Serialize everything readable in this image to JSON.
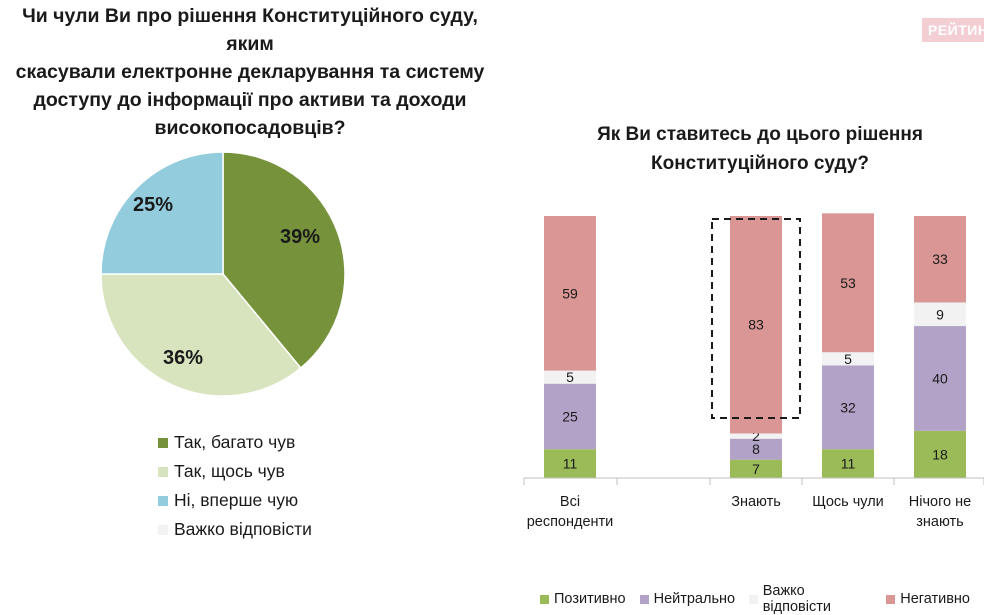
{
  "brand": "РЕЙТИН",
  "chart_data": [
    {
      "type": "pie",
      "title": "Чи чули Ви про рішення Конституційного суду, яким\nскасували електронне декларування та систему\nдоступу до інформації про активи та доходи\nвисокопосадовців?",
      "slices": [
        {
          "label": "Так, багато чув",
          "value": 39,
          "display": "39%",
          "color": "#76933c"
        },
        {
          "label": "Так, щось чув",
          "value": 36,
          "display": "36%",
          "color": "#d7e4bd"
        },
        {
          "label": "Ні, вперше чую",
          "value": 25,
          "display": "25%",
          "color": "#93cddd"
        },
        {
          "label": "Важко відповісти",
          "value": 0,
          "display": "",
          "color": "#f2f2f2"
        }
      ],
      "legend_position": "bottom"
    },
    {
      "type": "bar",
      "stacked": true,
      "title": "Як Ви ставитесь до цього рішення\nКонституційного суду?",
      "categories": [
        "Всі\nреспонденти",
        "",
        "Знають",
        "Щось чули",
        "Нічого не\nзнають"
      ],
      "series": [
        {
          "name": "Позитивно",
          "color": "#9bbb59",
          "values": [
            11,
            null,
            7,
            11,
            18
          ]
        },
        {
          "name": "Нейтрально",
          "color": "#b3a2c7",
          "values": [
            25,
            null,
            8,
            32,
            40
          ]
        },
        {
          "name": "Важко відповісти",
          "color": "#f2f2f2",
          "values": [
            5,
            null,
            2,
            5,
            9
          ]
        },
        {
          "name": "Негативно",
          "color": "#d99694",
          "values": [
            59,
            null,
            83,
            53,
            33
          ]
        }
      ],
      "highlighted_category": "Знають",
      "ylim": [
        0,
        100
      ],
      "legend_position": "bottom"
    }
  ]
}
